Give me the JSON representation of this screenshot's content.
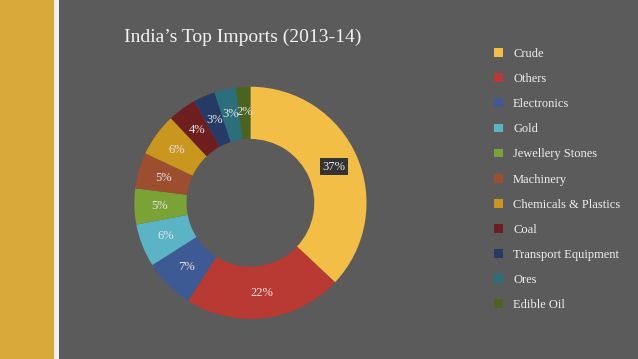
{
  "chart_data": {
    "type": "pie",
    "title": "India’s Top Imports (2013-14)",
    "categories": [
      "Crude",
      "Others",
      "Electronics",
      "Gold",
      "Jewellery Stones",
      "Machinery",
      "Chemicals & Plastics",
      "Coal",
      "Transport Equipment",
      "Ores",
      "Edible Oil"
    ],
    "values": [
      37,
      22,
      7,
      6,
      5,
      5,
      6,
      4,
      3,
      3,
      2
    ],
    "value_labels": [
      "37%",
      "22%",
      "7%",
      "6%",
      "5%",
      "5%",
      "6%",
      "4%",
      "3%",
      "3%",
      "2%"
    ],
    "colors": [
      "#F2BE45",
      "#B93A32",
      "#3E5A94",
      "#5BB3C6",
      "#7AA235",
      "#9C4E2E",
      "#C9961E",
      "#6E1E1E",
      "#263A66",
      "#2B6F7C",
      "#4A6420"
    ],
    "data_labels": true,
    "legend": "right"
  }
}
